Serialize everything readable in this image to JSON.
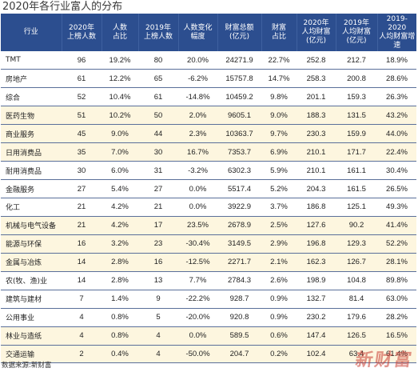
{
  "title": "2020年各行业富人的分布",
  "columns": [
    "行业",
    "2020年\n上榜人数",
    "人数\n占比",
    "2019年\n上榜人数",
    "人数变化\n幅度",
    "财富总额\n(亿元)",
    "财富\n占比",
    "2020年\n人均财富\n(亿元)",
    "2019年\n人均财富\n(亿元)",
    "2019-2020\n人均财富增\n速"
  ],
  "rows": [
    {
      "industry": "TMT",
      "c2020": "96",
      "share": "19.2%",
      "c2019": "80",
      "change": "20.0%",
      "wealth": "24271.9",
      "wshare": "22.7%",
      "avg2020": "252.8",
      "avg2019": "212.7",
      "growth": "18.9%",
      "highlight": false
    },
    {
      "industry": "房地产",
      "c2020": "61",
      "share": "12.2%",
      "c2019": "65",
      "change": "-6.2%",
      "wealth": "15757.8",
      "wshare": "14.7%",
      "avg2020": "258.3",
      "avg2019": "200.8",
      "growth": "28.6%",
      "highlight": false
    },
    {
      "industry": "综合",
      "c2020": "52",
      "share": "10.4%",
      "c2019": "61",
      "change": "-14.8%",
      "wealth": "10459.2",
      "wshare": "9.8%",
      "avg2020": "201.1",
      "avg2019": "159.3",
      "growth": "26.3%",
      "highlight": false
    },
    {
      "industry": "医药生物",
      "c2020": "51",
      "share": "10.2%",
      "c2019": "50",
      "change": "2.0%",
      "wealth": "9605.1",
      "wshare": "9.0%",
      "avg2020": "188.3",
      "avg2019": "131.5",
      "growth": "43.2%",
      "highlight": true
    },
    {
      "industry": "商业服务",
      "c2020": "45",
      "share": "9.0%",
      "c2019": "44",
      "change": "2.3%",
      "wealth": "10363.7",
      "wshare": "9.7%",
      "avg2020": "230.3",
      "avg2019": "159.9",
      "growth": "44.0%",
      "highlight": true
    },
    {
      "industry": "日用消费品",
      "c2020": "35",
      "share": "7.0%",
      "c2019": "30",
      "change": "16.7%",
      "wealth": "7353.7",
      "wshare": "6.9%",
      "avg2020": "210.1",
      "avg2019": "171.7",
      "growth": "22.4%",
      "highlight": true
    },
    {
      "industry": "耐用消费品",
      "c2020": "30",
      "share": "6.0%",
      "c2019": "31",
      "change": "-3.2%",
      "wealth": "6302.3",
      "wshare": "5.9%",
      "avg2020": "210.1",
      "avg2019": "161.1",
      "growth": "30.4%",
      "highlight": false
    },
    {
      "industry": "金融服务",
      "c2020": "27",
      "share": "5.4%",
      "c2019": "27",
      "change": "0.0%",
      "wealth": "5517.4",
      "wshare": "5.2%",
      "avg2020": "204.3",
      "avg2019": "161.5",
      "growth": "26.5%",
      "highlight": false
    },
    {
      "industry": "化工",
      "c2020": "21",
      "share": "4.2%",
      "c2019": "21",
      "change": "0.0%",
      "wealth": "3922.9",
      "wshare": "3.7%",
      "avg2020": "186.8",
      "avg2019": "125.1",
      "growth": "49.3%",
      "highlight": false
    },
    {
      "industry": "机械与电气设备",
      "c2020": "21",
      "share": "4.2%",
      "c2019": "17",
      "change": "23.5%",
      "wealth": "2678.9",
      "wshare": "2.5%",
      "avg2020": "127.6",
      "avg2019": "90.2",
      "growth": "41.4%",
      "highlight": true
    },
    {
      "industry": "能源与环保",
      "c2020": "16",
      "share": "3.2%",
      "c2019": "23",
      "change": "-30.4%",
      "wealth": "3149.5",
      "wshare": "2.9%",
      "avg2020": "196.8",
      "avg2019": "129.3",
      "growth": "52.2%",
      "highlight": true
    },
    {
      "industry": "金属与冶炼",
      "c2020": "14",
      "share": "2.8%",
      "c2019": "16",
      "change": "-12.5%",
      "wealth": "2271.7",
      "wshare": "2.1%",
      "avg2020": "162.3",
      "avg2019": "126.7",
      "growth": "28.1%",
      "highlight": true
    },
    {
      "industry": "农(牧、渔)业",
      "c2020": "14",
      "share": "2.8%",
      "c2019": "13",
      "change": "7.7%",
      "wealth": "2784.3",
      "wshare": "2.6%",
      "avg2020": "198.9",
      "avg2019": "104.8",
      "growth": "89.8%",
      "highlight": false
    },
    {
      "industry": "建筑与建材",
      "c2020": "7",
      "share": "1.4%",
      "c2019": "9",
      "change": "-22.2%",
      "wealth": "928.7",
      "wshare": "0.9%",
      "avg2020": "132.7",
      "avg2019": "81.4",
      "growth": "63.0%",
      "highlight": false
    },
    {
      "industry": "公用事业",
      "c2020": "4",
      "share": "0.8%",
      "c2019": "5",
      "change": "-20.0%",
      "wealth": "920.8",
      "wshare": "0.9%",
      "avg2020": "230.2",
      "avg2019": "179.6",
      "growth": "28.2%",
      "highlight": false
    },
    {
      "industry": "林业与造纸",
      "c2020": "4",
      "share": "0.8%",
      "c2019": "4",
      "change": "0.0%",
      "wealth": "589.5",
      "wshare": "0.6%",
      "avg2020": "147.4",
      "avg2019": "126.5",
      "growth": "16.5%",
      "highlight": true
    },
    {
      "industry": "交通运输",
      "c2020": "2",
      "share": "0.4%",
      "c2019": "4",
      "change": "-50.0%",
      "wealth": "204.7",
      "wshare": "0.2%",
      "avg2020": "102.4",
      "avg2019": "63.4",
      "growth": "61.4%",
      "highlight": true
    }
  ],
  "source": "数据来源:新财富",
  "logo": "新财富"
}
